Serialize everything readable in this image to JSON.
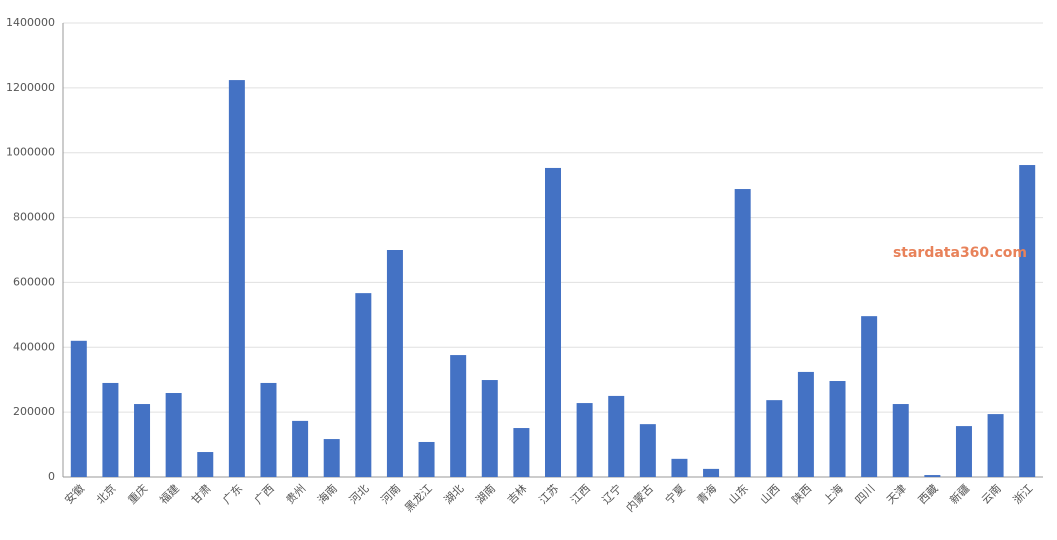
{
  "chart_data": {
    "type": "bar",
    "categories": [
      "安徽",
      "北京",
      "重庆",
      "福建",
      "甘肃",
      "广东",
      "广西",
      "贵州",
      "海南",
      "河北",
      "河南",
      "黑龙江",
      "湖北",
      "湖南",
      "吉林",
      "江苏",
      "江西",
      "辽宁",
      "内蒙古",
      "宁夏",
      "青海",
      "山东",
      "山西",
      "陕西",
      "上海",
      "四川",
      "天津",
      "西藏",
      "新疆",
      "云南",
      "浙江"
    ],
    "values": [
      420000,
      290000,
      225000,
      259000,
      77000,
      1224000,
      290000,
      173000,
      117000,
      567000,
      700000,
      108000,
      376000,
      299000,
      151000,
      953000,
      228000,
      250000,
      163000,
      56000,
      25000,
      888000,
      237000,
      324000,
      296000,
      496000,
      225000,
      6000,
      157000,
      194000,
      962000
    ],
    "color": "#4472c4",
    "ylim": [
      0,
      1400000
    ],
    "yticks": [
      0,
      200000,
      400000,
      600000,
      800000,
      1000000,
      1200000,
      1400000
    ],
    "grid": true,
    "watermark": "stardata360.com"
  }
}
